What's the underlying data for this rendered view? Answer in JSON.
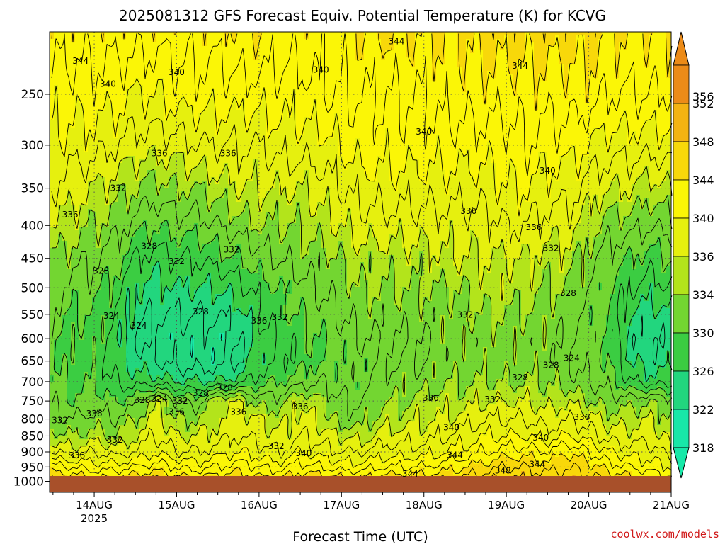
{
  "chart_data": {
    "type": "heatmap",
    "title": "2025081312 GFS Forecast Equiv. Potential Temperature (K) for KCVG",
    "xlabel": "Forecast Time (UTC)",
    "ylabel": "",
    "credit": "coolwx.com/models",
    "x_ticks": [
      {
        "label": "14AUG",
        "sublabel": "2025"
      },
      {
        "label": "15AUG",
        "sublabel": ""
      },
      {
        "label": "16AUG",
        "sublabel": ""
      },
      {
        "label": "17AUG",
        "sublabel": ""
      },
      {
        "label": "18AUG",
        "sublabel": ""
      },
      {
        "label": "19AUG",
        "sublabel": ""
      },
      {
        "label": "20AUG",
        "sublabel": ""
      },
      {
        "label": "21AUG",
        "sublabel": ""
      }
    ],
    "y_ticks": [
      250,
      300,
      350,
      400,
      450,
      500,
      550,
      600,
      650,
      700,
      750,
      800,
      850,
      900,
      950,
      1000
    ],
    "y_scale": "log-pressure",
    "y_top_hpa": 200,
    "y_bottom_hpa": 1040,
    "colorbar_ticks": [
      356,
      352,
      348,
      344,
      340,
      336,
      334,
      330,
      326,
      322,
      318
    ],
    "colors": {
      "ground": "#a8502a",
      "levels": [
        "#18e8a8",
        "#22d67e",
        "#3bcd42",
        "#73d631",
        "#b3e41b",
        "#e6f00e",
        "#fbf606",
        "#f8d80a",
        "#f3b312",
        "#ec8b18"
      ]
    },
    "time_start_hours_before_first_tick": 13,
    "time_span_hours": 181,
    "contour_interval": 2,
    "profile_times_h": [
      -13,
      -6,
      0,
      6,
      12,
      18,
      24,
      30,
      36,
      42,
      48,
      54,
      60,
      66,
      72,
      78,
      84,
      90,
      96,
      102,
      108,
      114,
      120,
      126,
      132,
      138,
      144,
      150,
      156,
      162,
      168
    ],
    "profile_levels_hpa": [
      1000,
      950,
      900,
      850,
      800,
      750,
      700,
      650,
      600,
      550,
      500,
      450,
      400,
      350,
      300,
      250,
      200
    ],
    "theta_e": [
      [
        346,
        343,
        338,
        335,
        333,
        332,
        331,
        331,
        331,
        332,
        333,
        334,
        336,
        338,
        340,
        341,
        343
      ],
      [
        346,
        342,
        337,
        334,
        332,
        330,
        329,
        329,
        329,
        330,
        331,
        333,
        335,
        337,
        339,
        341,
        343
      ],
      [
        345,
        341,
        338,
        335,
        333,
        331,
        330,
        329,
        330,
        330,
        331,
        332,
        334,
        336,
        339,
        341,
        343
      ],
      [
        345,
        341,
        337,
        334,
        332,
        330,
        328,
        327,
        327,
        328,
        329,
        331,
        333,
        335,
        338,
        341,
        343
      ],
      [
        346,
        342,
        338,
        336,
        334,
        331,
        327,
        325,
        324,
        325,
        326,
        328,
        331,
        334,
        337,
        340,
        343
      ],
      [
        347,
        343,
        340,
        338,
        337,
        336,
        327,
        324,
        323,
        324,
        325,
        327,
        330,
        333,
        337,
        340,
        343
      ],
      [
        345,
        342,
        338,
        336,
        334,
        332,
        326,
        323,
        323,
        324,
        326,
        328,
        331,
        334,
        337,
        341,
        343
      ],
      [
        345,
        341,
        338,
        336,
        334,
        331,
        326,
        323,
        323,
        324,
        326,
        328,
        331,
        334,
        338,
        341,
        343
      ],
      [
        346,
        342,
        339,
        337,
        336,
        336,
        326,
        323,
        323,
        324,
        326,
        329,
        332,
        335,
        338,
        341,
        343
      ],
      [
        346,
        343,
        340,
        338,
        337,
        336,
        327,
        324,
        324,
        325,
        327,
        330,
        333,
        336,
        338,
        341,
        344
      ],
      [
        345,
        342,
        339,
        337,
        336,
        333,
        329,
        327,
        327,
        328,
        329,
        331,
        334,
        336,
        338,
        341,
        344
      ],
      [
        345,
        341,
        338,
        336,
        335,
        333,
        330,
        328,
        328,
        329,
        330,
        332,
        334,
        336,
        339,
        341,
        343
      ],
      [
        346,
        343,
        340,
        338,
        337,
        336,
        331,
        329,
        329,
        330,
        331,
        333,
        334,
        336,
        339,
        341,
        343
      ],
      [
        346,
        342,
        339,
        337,
        335,
        334,
        332,
        330,
        330,
        331,
        332,
        333,
        335,
        337,
        339,
        342,
        343
      ],
      [
        345,
        341,
        338,
        336,
        333,
        332,
        331,
        331,
        331,
        332,
        333,
        334,
        336,
        338,
        340,
        342,
        343
      ],
      [
        345,
        341,
        338,
        335,
        333,
        332,
        331,
        331,
        332,
        333,
        334,
        335,
        337,
        339,
        341,
        342,
        344
      ],
      [
        346,
        342,
        339,
        337,
        335,
        334,
        333,
        332,
        332,
        333,
        334,
        335,
        337,
        339,
        341,
        342,
        344
      ],
      [
        346,
        342,
        339,
        337,
        335,
        334,
        333,
        332,
        332,
        333,
        334,
        335,
        337,
        339,
        341,
        342,
        344
      ],
      [
        346,
        342,
        339,
        337,
        336,
        335,
        333,
        332,
        332,
        333,
        334,
        335,
        337,
        339,
        341,
        342,
        344
      ],
      [
        346,
        343,
        340,
        338,
        336,
        335,
        334,
        333,
        333,
        333,
        334,
        336,
        337,
        339,
        341,
        343,
        344
      ],
      [
        347,
        344,
        341,
        339,
        337,
        335,
        334,
        333,
        333,
        334,
        334,
        336,
        337,
        339,
        341,
        343,
        344
      ],
      [
        348,
        345,
        342,
        340,
        338,
        336,
        334,
        333,
        333,
        334,
        335,
        336,
        337,
        339,
        341,
        343,
        345
      ],
      [
        349,
        346,
        343,
        340,
        338,
        336,
        334,
        333,
        333,
        334,
        335,
        336,
        338,
        340,
        341,
        343,
        345
      ],
      [
        348,
        346,
        343,
        340,
        338,
        336,
        334,
        333,
        333,
        334,
        335,
        336,
        338,
        340,
        342,
        343,
        345
      ],
      [
        347,
        345,
        342,
        339,
        337,
        335,
        334,
        333,
        333,
        333,
        334,
        335,
        337,
        339,
        341,
        343,
        345
      ],
      [
        348,
        346,
        344,
        340,
        338,
        336,
        333,
        332,
        332,
        333,
        334,
        335,
        337,
        339,
        341,
        343,
        345
      ],
      [
        347,
        345,
        342,
        339,
        337,
        334,
        332,
        331,
        331,
        331,
        332,
        333,
        335,
        337,
        340,
        343,
        345
      ],
      [
        346,
        343,
        340,
        337,
        335,
        333,
        331,
        330,
        330,
        330,
        330,
        331,
        333,
        336,
        339,
        342,
        344
      ],
      [
        345,
        342,
        339,
        337,
        335,
        333,
        328,
        326,
        325,
        326,
        328,
        330,
        333,
        336,
        339,
        342,
        344
      ],
      [
        344,
        341,
        339,
        337,
        336,
        334,
        327,
        325,
        324,
        325,
        327,
        329,
        332,
        335,
        339,
        342,
        344
      ],
      [
        343,
        340,
        337,
        335,
        334,
        333,
        327,
        325,
        325,
        326,
        328,
        330,
        333,
        336,
        339,
        342,
        344
      ]
    ],
    "contour_labels": [
      {
        "text": "344",
        "t": -4,
        "p": 222
      },
      {
        "text": "340",
        "t": 4,
        "p": 241
      },
      {
        "text": "340",
        "t": 24,
        "p": 231
      },
      {
        "text": "340",
        "t": 66,
        "p": 229
      },
      {
        "text": "344",
        "t": 88,
        "p": 207
      },
      {
        "text": "344",
        "t": 124,
        "p": 226
      },
      {
        "text": "340",
        "t": 96,
        "p": 286
      },
      {
        "text": "340",
        "t": 132,
        "p": 329
      },
      {
        "text": "336",
        "t": 19,
        "p": 309
      },
      {
        "text": "336",
        "t": 39,
        "p": 309
      },
      {
        "text": "336",
        "t": 109,
        "p": 380
      },
      {
        "text": "336",
        "t": 128,
        "p": 403
      },
      {
        "text": "336",
        "t": -7,
        "p": 385
      },
      {
        "text": "332",
        "t": 7,
        "p": 350
      },
      {
        "text": "328",
        "t": 16,
        "p": 431
      },
      {
        "text": "332",
        "t": 24,
        "p": 455
      },
      {
        "text": "332",
        "t": 40,
        "p": 436
      },
      {
        "text": "332",
        "t": 133,
        "p": 434
      },
      {
        "text": "328",
        "t": 2,
        "p": 471
      },
      {
        "text": "328",
        "t": 138,
        "p": 510
      },
      {
        "text": "324",
        "t": 5,
        "p": 553
      },
      {
        "text": "324",
        "t": 13,
        "p": 573
      },
      {
        "text": "328",
        "t": 31,
        "p": 545
      },
      {
        "text": "336",
        "t": 48,
        "p": 563
      },
      {
        "text": "332",
        "t": 54,
        "p": 556
      },
      {
        "text": "332",
        "t": 108,
        "p": 551
      },
      {
        "text": "324",
        "t": 139,
        "p": 643
      },
      {
        "text": "328",
        "t": 133,
        "p": 660
      },
      {
        "text": "328",
        "t": 124,
        "p": 690
      },
      {
        "text": "328",
        "t": 31,
        "p": 729
      },
      {
        "text": "328",
        "t": 14,
        "p": 748
      },
      {
        "text": "324",
        "t": 19,
        "p": 744
      },
      {
        "text": "332",
        "t": 25,
        "p": 750
      },
      {
        "text": "336",
        "t": 0,
        "p": 785
      },
      {
        "text": "336",
        "t": 24,
        "p": 780
      },
      {
        "text": "336",
        "t": 42,
        "p": 780
      },
      {
        "text": "328",
        "t": 38,
        "p": 715
      },
      {
        "text": "336",
        "t": 60,
        "p": 765
      },
      {
        "text": "336",
        "t": 98,
        "p": 742
      },
      {
        "text": "332",
        "t": 116,
        "p": 746
      },
      {
        "text": "336",
        "t": 142,
        "p": 795
      },
      {
        "text": "332",
        "t": -10,
        "p": 804
      },
      {
        "text": "332",
        "t": 6,
        "p": 862
      },
      {
        "text": "336",
        "t": -5,
        "p": 912
      },
      {
        "text": "332",
        "t": 53,
        "p": 882
      },
      {
        "text": "340",
        "t": 61,
        "p": 905
      },
      {
        "text": "340",
        "t": 104,
        "p": 825
      },
      {
        "text": "340",
        "t": 130,
        "p": 856
      },
      {
        "text": "344",
        "t": 105,
        "p": 910
      },
      {
        "text": "344",
        "t": 129,
        "p": 941
      },
      {
        "text": "348",
        "t": 119,
        "p": 962
      },
      {
        "text": "344",
        "t": 92,
        "p": 974
      }
    ]
  }
}
